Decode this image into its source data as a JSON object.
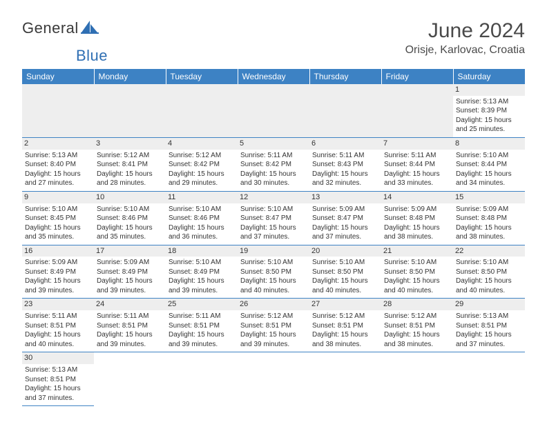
{
  "brand": {
    "name_part1": "General",
    "name_part2": "Blue",
    "colors": {
      "primary": "#2f6fb3",
      "text": "#3a3a3a"
    }
  },
  "header": {
    "title": "June 2024",
    "location": "Orisje, Karlovac, Croatia"
  },
  "calendar": {
    "day_names": [
      "Sunday",
      "Monday",
      "Tuesday",
      "Wednesday",
      "Thursday",
      "Friday",
      "Saturday"
    ],
    "header_bg": "#3d82c4",
    "header_fg": "#ffffff",
    "cell_border": "#3d82c4",
    "daynum_bg": "#eeeeee",
    "grid": [
      [
        null,
        null,
        null,
        null,
        null,
        null,
        {
          "n": "1",
          "sr": "Sunrise: 5:13 AM",
          "ss": "Sunset: 8:39 PM",
          "dl1": "Daylight: 15 hours",
          "dl2": "and 25 minutes."
        }
      ],
      [
        {
          "n": "2",
          "sr": "Sunrise: 5:13 AM",
          "ss": "Sunset: 8:40 PM",
          "dl1": "Daylight: 15 hours",
          "dl2": "and 27 minutes."
        },
        {
          "n": "3",
          "sr": "Sunrise: 5:12 AM",
          "ss": "Sunset: 8:41 PM",
          "dl1": "Daylight: 15 hours",
          "dl2": "and 28 minutes."
        },
        {
          "n": "4",
          "sr": "Sunrise: 5:12 AM",
          "ss": "Sunset: 8:42 PM",
          "dl1": "Daylight: 15 hours",
          "dl2": "and 29 minutes."
        },
        {
          "n": "5",
          "sr": "Sunrise: 5:11 AM",
          "ss": "Sunset: 8:42 PM",
          "dl1": "Daylight: 15 hours",
          "dl2": "and 30 minutes."
        },
        {
          "n": "6",
          "sr": "Sunrise: 5:11 AM",
          "ss": "Sunset: 8:43 PM",
          "dl1": "Daylight: 15 hours",
          "dl2": "and 32 minutes."
        },
        {
          "n": "7",
          "sr": "Sunrise: 5:11 AM",
          "ss": "Sunset: 8:44 PM",
          "dl1": "Daylight: 15 hours",
          "dl2": "and 33 minutes."
        },
        {
          "n": "8",
          "sr": "Sunrise: 5:10 AM",
          "ss": "Sunset: 8:44 PM",
          "dl1": "Daylight: 15 hours",
          "dl2": "and 34 minutes."
        }
      ],
      [
        {
          "n": "9",
          "sr": "Sunrise: 5:10 AM",
          "ss": "Sunset: 8:45 PM",
          "dl1": "Daylight: 15 hours",
          "dl2": "and 35 minutes."
        },
        {
          "n": "10",
          "sr": "Sunrise: 5:10 AM",
          "ss": "Sunset: 8:46 PM",
          "dl1": "Daylight: 15 hours",
          "dl2": "and 35 minutes."
        },
        {
          "n": "11",
          "sr": "Sunrise: 5:10 AM",
          "ss": "Sunset: 8:46 PM",
          "dl1": "Daylight: 15 hours",
          "dl2": "and 36 minutes."
        },
        {
          "n": "12",
          "sr": "Sunrise: 5:10 AM",
          "ss": "Sunset: 8:47 PM",
          "dl1": "Daylight: 15 hours",
          "dl2": "and 37 minutes."
        },
        {
          "n": "13",
          "sr": "Sunrise: 5:09 AM",
          "ss": "Sunset: 8:47 PM",
          "dl1": "Daylight: 15 hours",
          "dl2": "and 37 minutes."
        },
        {
          "n": "14",
          "sr": "Sunrise: 5:09 AM",
          "ss": "Sunset: 8:48 PM",
          "dl1": "Daylight: 15 hours",
          "dl2": "and 38 minutes."
        },
        {
          "n": "15",
          "sr": "Sunrise: 5:09 AM",
          "ss": "Sunset: 8:48 PM",
          "dl1": "Daylight: 15 hours",
          "dl2": "and 38 minutes."
        }
      ],
      [
        {
          "n": "16",
          "sr": "Sunrise: 5:09 AM",
          "ss": "Sunset: 8:49 PM",
          "dl1": "Daylight: 15 hours",
          "dl2": "and 39 minutes."
        },
        {
          "n": "17",
          "sr": "Sunrise: 5:09 AM",
          "ss": "Sunset: 8:49 PM",
          "dl1": "Daylight: 15 hours",
          "dl2": "and 39 minutes."
        },
        {
          "n": "18",
          "sr": "Sunrise: 5:10 AM",
          "ss": "Sunset: 8:49 PM",
          "dl1": "Daylight: 15 hours",
          "dl2": "and 39 minutes."
        },
        {
          "n": "19",
          "sr": "Sunrise: 5:10 AM",
          "ss": "Sunset: 8:50 PM",
          "dl1": "Daylight: 15 hours",
          "dl2": "and 40 minutes."
        },
        {
          "n": "20",
          "sr": "Sunrise: 5:10 AM",
          "ss": "Sunset: 8:50 PM",
          "dl1": "Daylight: 15 hours",
          "dl2": "and 40 minutes."
        },
        {
          "n": "21",
          "sr": "Sunrise: 5:10 AM",
          "ss": "Sunset: 8:50 PM",
          "dl1": "Daylight: 15 hours",
          "dl2": "and 40 minutes."
        },
        {
          "n": "22",
          "sr": "Sunrise: 5:10 AM",
          "ss": "Sunset: 8:50 PM",
          "dl1": "Daylight: 15 hours",
          "dl2": "and 40 minutes."
        }
      ],
      [
        {
          "n": "23",
          "sr": "Sunrise: 5:11 AM",
          "ss": "Sunset: 8:51 PM",
          "dl1": "Daylight: 15 hours",
          "dl2": "and 40 minutes."
        },
        {
          "n": "24",
          "sr": "Sunrise: 5:11 AM",
          "ss": "Sunset: 8:51 PM",
          "dl1": "Daylight: 15 hours",
          "dl2": "and 39 minutes."
        },
        {
          "n": "25",
          "sr": "Sunrise: 5:11 AM",
          "ss": "Sunset: 8:51 PM",
          "dl1": "Daylight: 15 hours",
          "dl2": "and 39 minutes."
        },
        {
          "n": "26",
          "sr": "Sunrise: 5:12 AM",
          "ss": "Sunset: 8:51 PM",
          "dl1": "Daylight: 15 hours",
          "dl2": "and 39 minutes."
        },
        {
          "n": "27",
          "sr": "Sunrise: 5:12 AM",
          "ss": "Sunset: 8:51 PM",
          "dl1": "Daylight: 15 hours",
          "dl2": "and 38 minutes."
        },
        {
          "n": "28",
          "sr": "Sunrise: 5:12 AM",
          "ss": "Sunset: 8:51 PM",
          "dl1": "Daylight: 15 hours",
          "dl2": "and 38 minutes."
        },
        {
          "n": "29",
          "sr": "Sunrise: 5:13 AM",
          "ss": "Sunset: 8:51 PM",
          "dl1": "Daylight: 15 hours",
          "dl2": "and 37 minutes."
        }
      ],
      [
        {
          "n": "30",
          "sr": "Sunrise: 5:13 AM",
          "ss": "Sunset: 8:51 PM",
          "dl1": "Daylight: 15 hours",
          "dl2": "and 37 minutes."
        },
        null,
        null,
        null,
        null,
        null,
        null
      ]
    ]
  }
}
